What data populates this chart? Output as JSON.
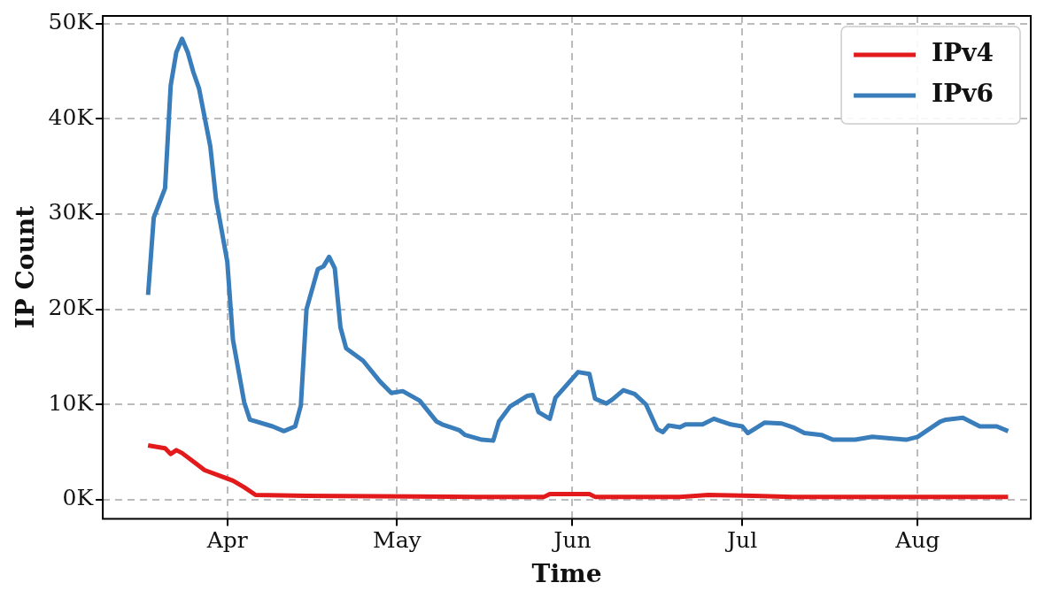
{
  "chart_data": {
    "type": "line",
    "xlabel": "Time",
    "ylabel": "IP Count",
    "legend": "top right",
    "grid": true,
    "line_style": "solid",
    "marker": "none",
    "xlim": [
      "--03-10",
      "--08-21"
    ],
    "xticks": [
      {
        "value": "--04-01",
        "label": "Apr"
      },
      {
        "value": "--05-01",
        "label": "May"
      },
      {
        "value": "--06-01",
        "label": "Jun"
      },
      {
        "value": "--07-01",
        "label": "Jul"
      },
      {
        "value": "--08-01",
        "label": "Aug"
      }
    ],
    "ylim": [
      -2000,
      50800
    ],
    "yticks": [
      {
        "value": 0,
        "label": "0K"
      },
      {
        "value": 10000,
        "label": "10K"
      },
      {
        "value": 20000,
        "label": "20K"
      },
      {
        "value": 30000,
        "label": "30K"
      },
      {
        "value": 40000,
        "label": "40K"
      },
      {
        "value": 50000,
        "label": "50K"
      }
    ],
    "series": [
      {
        "name": "IPv4",
        "color": "#e31a1c",
        "x": [
          "--03-18",
          "--03-21",
          "--03-22",
          "--03-23",
          "--03-24",
          "--03-26",
          "--03-28",
          "--04-02",
          "--04-04",
          "--04-06",
          "--04-15",
          "--05-15",
          "--05-27",
          "--05-28",
          "--06-04",
          "--06-05",
          "--06-20",
          "--06-25",
          "--07-03",
          "--07-10",
          "--08-17"
        ],
        "values": [
          5700,
          5400,
          4800,
          5200,
          4900,
          4000,
          3100,
          2000,
          1300,
          500,
          400,
          300,
          300,
          600,
          600,
          300,
          300,
          500,
          400,
          300,
          300
        ]
      },
      {
        "name": "IPv6",
        "color": "#3a7dbb",
        "x": [
          "--03-18",
          "--03-19",
          "--03-21",
          "--03-22",
          "--03-23",
          "--03-24",
          "--03-25",
          "--03-26",
          "--03-27",
          "--03-29",
          "--03-30",
          "--04-01",
          "--04-02",
          "--04-04",
          "--04-05",
          "--04-09",
          "--04-11",
          "--04-13",
          "--04-14",
          "--04-15",
          "--04-17",
          "--04-18",
          "--04-19",
          "--04-20",
          "--04-21",
          "--04-22",
          "--04-25",
          "--04-28",
          "--04-30",
          "--05-02",
          "--05-05",
          "--05-08",
          "--05-09",
          "--05-12",
          "--05-13",
          "--05-16",
          "--05-18",
          "--05-19",
          "--05-21",
          "--05-24",
          "--05-25",
          "--05-26",
          "--05-28",
          "--05-29",
          "--06-02",
          "--06-04",
          "--06-05",
          "--06-07",
          "--06-08",
          "--06-10",
          "--06-12",
          "--06-14",
          "--06-16",
          "--06-17",
          "--06-18",
          "--06-20",
          "--06-21",
          "--06-24",
          "--06-26",
          "--06-27",
          "--06-29",
          "--07-01",
          "--07-02",
          "--07-05",
          "--07-08",
          "--07-10",
          "--07-12",
          "--07-15",
          "--07-17",
          "--07-21",
          "--07-24",
          "--07-28",
          "--07-30",
          "--08-01",
          "--08-05",
          "--08-06",
          "--08-09",
          "--08-12",
          "--08-15",
          "--08-17"
        ],
        "values": [
          21500,
          29600,
          32700,
          43500,
          47000,
          48400,
          47000,
          44900,
          43200,
          37100,
          31600,
          25000,
          16800,
          10200,
          8400,
          7700,
          7200,
          7700,
          9900,
          20000,
          24200,
          24500,
          25500,
          24300,
          18100,
          15900,
          14600,
          12400,
          11200,
          11400,
          10400,
          8200,
          7900,
          7300,
          6800,
          6300,
          6200,
          8200,
          9800,
          10900,
          11000,
          9200,
          8500,
          10700,
          13400,
          13200,
          10600,
          10100,
          10500,
          11500,
          11100,
          10000,
          7400,
          7100,
          7800,
          7600,
          7900,
          7900,
          8500,
          8300,
          7900,
          7700,
          7000,
          8100,
          8000,
          7600,
          7000,
          6800,
          6300,
          6300,
          6600,
          6400,
          6300,
          6600,
          8200,
          8400,
          8600,
          7700,
          7700,
          7200
        ]
      }
    ]
  }
}
